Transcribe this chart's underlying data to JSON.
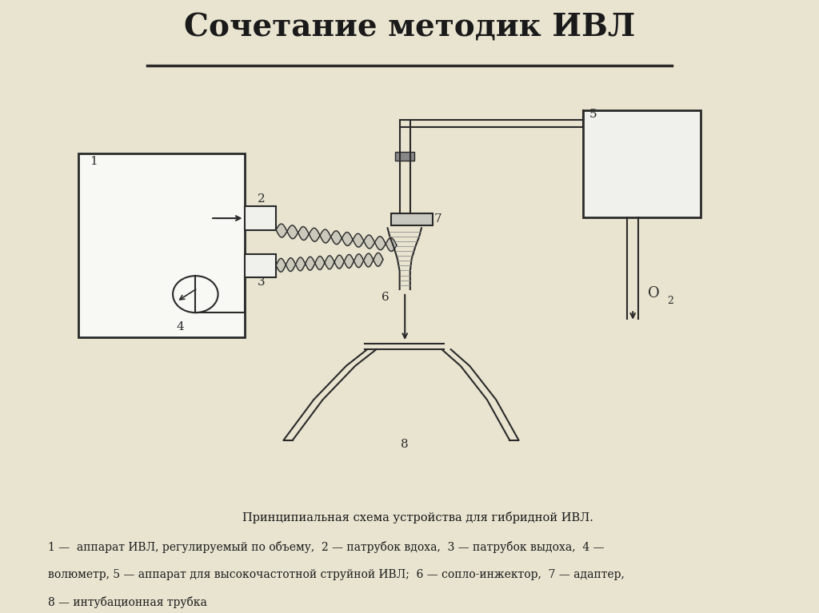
{
  "title": "Сочетание методик ИВЛ",
  "bg_color": "#e8e4d0",
  "caption_line1": "Принципиальная схема устройства для гибридной ИВЛ.",
  "caption_line2": "1 —  аппарат ИВЛ, регулируемый по объему,  2 — патрубок вдоха,  3 — патрубок выдоха,  4 —",
  "caption_line3": "волюметр, 5 — аппарат для высокочастотной струйной ИВЛ;  6 — сопло-инжектор,  7 — адаптер,",
  "caption_line4": "8 — интубационная трубка",
  "line_color": "#2a2a2a",
  "label_color": "#1a1a1a",
  "diagram_bg": "#f8f8f4"
}
